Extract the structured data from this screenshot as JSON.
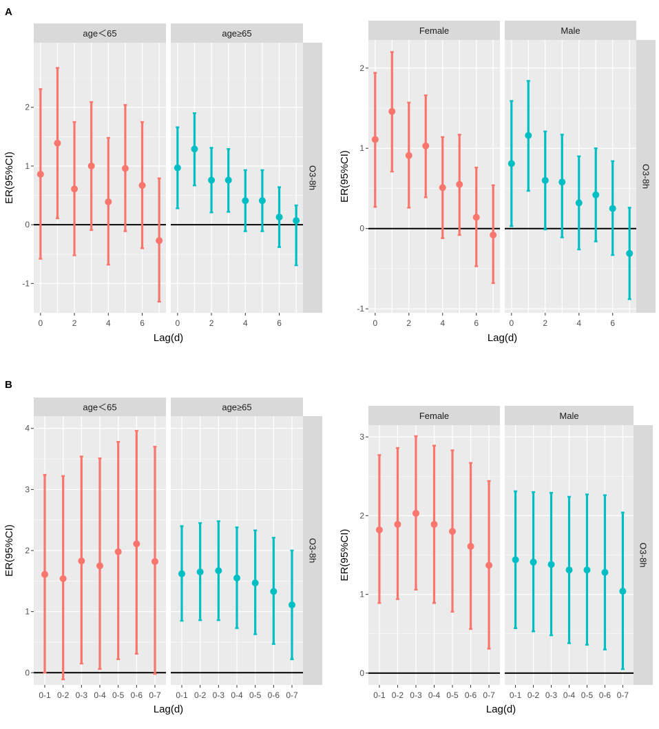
{
  "figure": {
    "panel_labels": [
      "A",
      "B"
    ]
  },
  "colors": {
    "panel_bg": "#ebebeb",
    "grid": "#ffffff",
    "strip_bg": "#d9d9d9",
    "zero_line": "#000000",
    "series_left": "#f8766d",
    "series_right": "#00bfc4",
    "axis_text": "#4d4d4d",
    "title_text": "#000000"
  },
  "chart_data": [
    {
      "id": "A-age",
      "panel": "A",
      "type": "errorbar",
      "ylabel": "ER(95%CI)",
      "xlabel": "Lag(d)",
      "strip_right": "O3-8h",
      "x_ticks": [
        "0",
        "2",
        "4",
        "6"
      ],
      "x_tick_positions": [
        0,
        2,
        4,
        6
      ],
      "x_range": [
        -0.4,
        7.4
      ],
      "ylim": [
        -1.5,
        3.1
      ],
      "y_ticks": [
        -1,
        0,
        1,
        2
      ],
      "facets": [
        {
          "label": "age＜65",
          "color_key": "series_left",
          "x": [
            0,
            1,
            2,
            3,
            4,
            5,
            6,
            7
          ],
          "values": [
            0.86,
            1.39,
            0.61,
            1.0,
            0.39,
            0.96,
            0.67,
            -0.27
          ],
          "lower": [
            -0.58,
            0.11,
            -0.52,
            -0.09,
            -0.68,
            -0.11,
            -0.4,
            -1.31
          ],
          "upper": [
            2.31,
            2.67,
            1.75,
            2.09,
            1.48,
            2.04,
            1.75,
            0.79
          ]
        },
        {
          "label": "age≥65",
          "color_key": "series_right",
          "x": [
            0,
            1,
            2,
            3,
            4,
            5,
            6,
            7
          ],
          "values": [
            0.97,
            1.29,
            0.76,
            0.76,
            0.41,
            0.41,
            0.13,
            0.07
          ],
          "lower": [
            0.28,
            0.67,
            0.21,
            0.22,
            -0.11,
            -0.11,
            -0.38,
            -0.69
          ],
          "upper": [
            1.66,
            1.9,
            1.31,
            1.29,
            0.93,
            0.93,
            0.64,
            0.33
          ]
        }
      ]
    },
    {
      "id": "A-sex",
      "panel": "A",
      "type": "errorbar",
      "ylabel": "ER(95%CI)",
      "xlabel": "Lag(d)",
      "strip_right": "O3-8h",
      "x_ticks": [
        "0",
        "2",
        "4",
        "6"
      ],
      "x_tick_positions": [
        0,
        2,
        4,
        6
      ],
      "x_range": [
        -0.4,
        7.4
      ],
      "ylim": [
        -1.05,
        2.35
      ],
      "y_ticks": [
        -1,
        0,
        1,
        2
      ],
      "facets": [
        {
          "label": "Female",
          "color_key": "series_left",
          "x": [
            0,
            1,
            2,
            3,
            4,
            5,
            6,
            7
          ],
          "values": [
            1.11,
            1.46,
            0.91,
            1.03,
            0.51,
            0.55,
            0.14,
            -0.08
          ],
          "lower": [
            0.27,
            0.71,
            0.26,
            0.39,
            -0.12,
            -0.08,
            -0.47,
            -0.68
          ],
          "upper": [
            1.94,
            2.2,
            1.57,
            1.66,
            1.14,
            1.17,
            0.76,
            0.54
          ]
        },
        {
          "label": "Male",
          "color_key": "series_right",
          "x": [
            0,
            1,
            2,
            3,
            4,
            5,
            6,
            7
          ],
          "values": [
            0.81,
            1.16,
            0.6,
            0.58,
            0.32,
            0.42,
            0.25,
            -0.31
          ],
          "lower": [
            0.03,
            0.47,
            -0.01,
            -0.11,
            -0.26,
            -0.16,
            -0.33,
            -0.88
          ],
          "upper": [
            1.59,
            1.84,
            1.21,
            1.17,
            0.9,
            1.0,
            0.84,
            0.26
          ]
        }
      ]
    },
    {
      "id": "B-age",
      "panel": "B",
      "type": "errorbar",
      "ylabel": "ER(95%CI)",
      "xlabel": "Lag(d)",
      "strip_right": "O3-8h",
      "x_ticks": [
        "0-1",
        "0-2",
        "0-3",
        "0-4",
        "0-5",
        "0-6",
        "0-7"
      ],
      "x_tick_positions": [
        0,
        1,
        2,
        3,
        4,
        5,
        6
      ],
      "x_range": [
        -0.6,
        6.6
      ],
      "ylim": [
        -0.2,
        4.2
      ],
      "y_ticks": [
        0,
        1,
        2,
        3,
        4
      ],
      "facets": [
        {
          "label": "age＜65",
          "color_key": "series_left",
          "x": [
            0,
            1,
            2,
            3,
            4,
            5,
            6
          ],
          "values": [
            1.61,
            1.54,
            1.83,
            1.75,
            1.98,
            2.11,
            1.82
          ],
          "lower": [
            0.0,
            -0.11,
            0.15,
            0.06,
            0.22,
            0.31,
            -0.02
          ],
          "upper": [
            3.24,
            3.22,
            3.54,
            3.51,
            3.78,
            3.96,
            3.7
          ]
        },
        {
          "label": "age≥65",
          "color_key": "series_right",
          "x": [
            0,
            1,
            2,
            3,
            4,
            5,
            6
          ],
          "values": [
            1.62,
            1.65,
            1.67,
            1.55,
            1.47,
            1.33,
            1.11
          ],
          "lower": [
            0.85,
            0.86,
            0.86,
            0.73,
            0.63,
            0.47,
            0.22
          ],
          "upper": [
            2.4,
            2.45,
            2.48,
            2.38,
            2.33,
            2.21,
            2.0
          ]
        }
      ]
    },
    {
      "id": "B-sex",
      "panel": "B",
      "type": "errorbar",
      "ylabel": "ER(95%CI)",
      "xlabel": "Lag(d)",
      "strip_right": "O3-8h",
      "x_ticks": [
        "0-1",
        "0-2",
        "0-3",
        "0-4",
        "0-5",
        "0-6",
        "0-7"
      ],
      "x_tick_positions": [
        0,
        1,
        2,
        3,
        4,
        5,
        6
      ],
      "x_range": [
        -0.6,
        6.6
      ],
      "ylim": [
        -0.15,
        3.15
      ],
      "y_ticks": [
        0,
        1,
        2,
        3
      ],
      "facets": [
        {
          "label": "Female",
          "color_key": "series_left",
          "x": [
            0,
            1,
            2,
            3,
            4,
            5,
            6
          ],
          "values": [
            1.82,
            1.89,
            2.03,
            1.89,
            1.8,
            1.61,
            1.37
          ],
          "lower": [
            0.89,
            0.94,
            1.06,
            0.89,
            0.78,
            0.56,
            0.31
          ],
          "upper": [
            2.77,
            2.86,
            3.01,
            2.89,
            2.83,
            2.67,
            2.44
          ]
        },
        {
          "label": "Male",
          "color_key": "series_right",
          "x": [
            0,
            1,
            2,
            3,
            4,
            5,
            6
          ],
          "values": [
            1.44,
            1.41,
            1.38,
            1.31,
            1.31,
            1.28,
            1.04
          ],
          "lower": [
            0.57,
            0.53,
            0.48,
            0.38,
            0.36,
            0.3,
            0.05
          ],
          "upper": [
            2.31,
            2.3,
            2.29,
            2.24,
            2.27,
            2.26,
            2.04
          ]
        }
      ]
    }
  ]
}
